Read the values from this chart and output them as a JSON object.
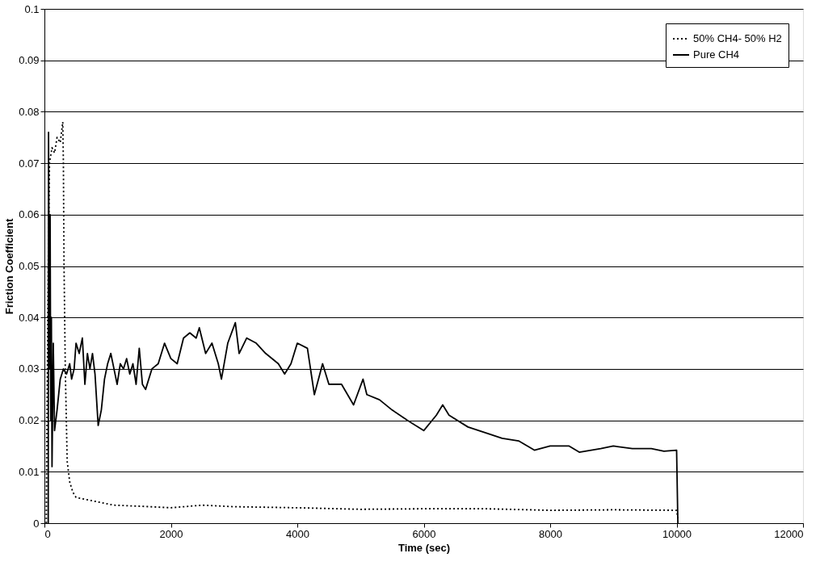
{
  "chart_data": {
    "type": "line",
    "xlabel": "Time (sec)",
    "ylabel": "Friction Coefficient",
    "xlim": [
      0,
      12000
    ],
    "xticks": [
      0,
      2000,
      4000,
      6000,
      8000,
      10000,
      12000
    ],
    "ylim": [
      0,
      0.1
    ],
    "yticks": [
      0,
      0.01,
      0.02,
      0.03,
      0.04,
      0.05,
      0.06,
      0.07,
      0.08,
      0.09,
      0.1
    ],
    "grid": "y",
    "legend": "top right",
    "marker": "none",
    "series": [
      {
        "name": "50% CH4- 50% H2",
        "color": "#000000",
        "line_style": "dotted",
        "x": [
          30,
          40,
          60,
          80,
          120,
          160,
          200,
          250,
          290,
          300,
          310,
          330,
          360,
          400,
          450,
          500,
          700,
          900,
          1100,
          1500,
          2000,
          2500,
          3000,
          4000,
          5000,
          6000,
          7000,
          8000,
          9000,
          10000,
          10020
        ],
        "values": [
          0,
          0.02,
          0.05,
          0.07,
          0.073,
          0.072,
          0.075,
          0.074,
          0.078,
          0.07,
          0.05,
          0.03,
          0.012,
          0.008,
          0.006,
          0.005,
          0.0045,
          0.004,
          0.0035,
          0.0033,
          0.003,
          0.0035,
          0.0032,
          0.003,
          0.0027,
          0.0028,
          0.0028,
          0.0025,
          0.0026,
          0.0025,
          0.001
        ]
      },
      {
        "name": "Pure CH4",
        "color": "#000000",
        "line_style": "solid",
        "x": [
          60,
          65,
          80,
          90,
          100,
          110,
          120,
          140,
          160,
          200,
          250,
          300,
          350,
          400,
          430,
          470,
          500,
          550,
          600,
          640,
          680,
          720,
          760,
          800,
          850,
          900,
          950,
          1000,
          1050,
          1100,
          1150,
          1200,
          1250,
          1300,
          1350,
          1400,
          1450,
          1500,
          1550,
          1600,
          1700,
          1800,
          1900,
          2000,
          2100,
          2200,
          2300,
          2400,
          2450,
          2550,
          2650,
          2750,
          2800,
          2900,
          3020,
          3080,
          3200,
          3350,
          3500,
          3700,
          3800,
          3900,
          4000,
          4160,
          4270,
          4400,
          4500,
          4700,
          4890,
          5040,
          5100,
          5300,
          5500,
          5740,
          6000,
          6200,
          6300,
          6400,
          6700,
          7000,
          7240,
          7500,
          7750,
          8000,
          8300,
          8460,
          8800,
          9000,
          9300,
          9600,
          9800,
          10000,
          10020
        ],
        "values": [
          0,
          0.076,
          0.03,
          0.06,
          0.02,
          0.04,
          0.011,
          0.035,
          0.018,
          0.022,
          0.028,
          0.03,
          0.029,
          0.031,
          0.028,
          0.03,
          0.035,
          0.033,
          0.036,
          0.027,
          0.033,
          0.03,
          0.033,
          0.029,
          0.019,
          0.022,
          0.028,
          0.031,
          0.033,
          0.03,
          0.027,
          0.031,
          0.03,
          0.032,
          0.029,
          0.031,
          0.027,
          0.034,
          0.027,
          0.026,
          0.03,
          0.031,
          0.035,
          0.032,
          0.031,
          0.036,
          0.037,
          0.036,
          0.038,
          0.033,
          0.035,
          0.031,
          0.028,
          0.035,
          0.039,
          0.033,
          0.036,
          0.035,
          0.033,
          0.031,
          0.029,
          0.031,
          0.035,
          0.034,
          0.025,
          0.031,
          0.027,
          0.027,
          0.023,
          0.028,
          0.025,
          0.024,
          0.022,
          0.02,
          0.018,
          0.021,
          0.023,
          0.021,
          0.0187,
          0.0175,
          0.0165,
          0.016,
          0.0142,
          0.015,
          0.015,
          0.0138,
          0.0145,
          0.015,
          0.0145,
          0.0145,
          0.014,
          0.0142,
          0
        ]
      }
    ]
  }
}
